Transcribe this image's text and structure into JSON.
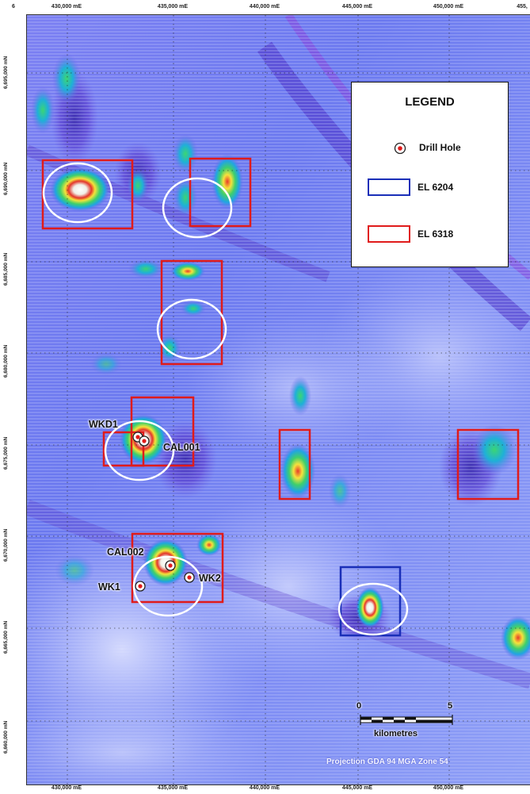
{
  "map": {
    "easting_labels": [
      "430,000 mE",
      "435,000 mE",
      "440,000 mE",
      "445,000 mE",
      "450,000 mE",
      "455,"
    ],
    "bottom_easting_labels": [
      "430,000 mE",
      "435,000 mE",
      "440,000 mE",
      "445,000 mE",
      "450,000 mE"
    ],
    "northing_labels": [
      "6,695,000 mN",
      "6,690,000 mN",
      "6,685,000 mN",
      "6,680,000 mN",
      "6,675,000 mN",
      "6,670,000 mN",
      "6,665,000 mN",
      "6,660,000 mN"
    ],
    "corner_label": "6",
    "projection": "Projection GDA 94 MGA Zone 54"
  },
  "legend": {
    "title": "LEGEND",
    "items": [
      {
        "label": "Drill Hole",
        "symbol": "drill-hole-icon"
      },
      {
        "label": "EL 6204",
        "color": "#1a2fb8"
      },
      {
        "label": "EL 6318",
        "color": "#e01b1b"
      }
    ]
  },
  "drill_holes": [
    {
      "label": "WKD1"
    },
    {
      "label": "CAL001"
    },
    {
      "label": "CAL002"
    },
    {
      "label": "WK2"
    },
    {
      "label": "WK1"
    }
  ],
  "scale_bar": {
    "start": "0",
    "end": "5",
    "unit": "kilometres"
  },
  "colors": {
    "tenement_red": "#e01b1b",
    "tenement_blue": "#1a2fb8",
    "anomaly_ring": "#ffffff",
    "background_low": "#5a6cf0",
    "anomaly_high": "#ffffff"
  }
}
